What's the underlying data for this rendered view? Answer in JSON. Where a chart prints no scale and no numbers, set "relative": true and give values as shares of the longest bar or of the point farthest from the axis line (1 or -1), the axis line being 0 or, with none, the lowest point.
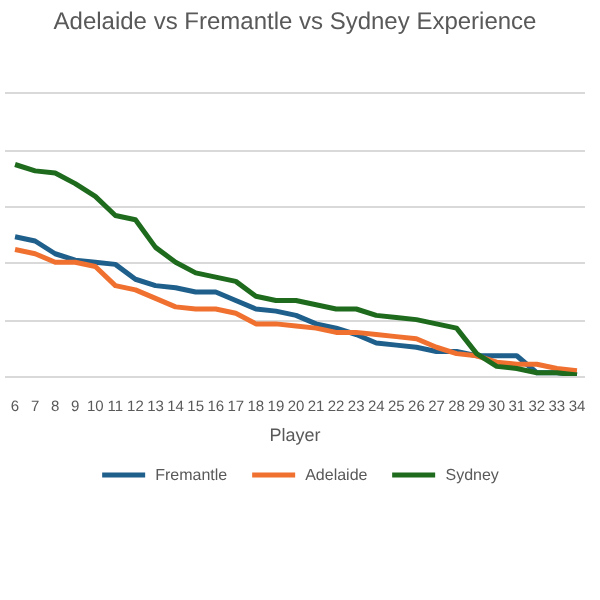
{
  "chart_data": {
    "type": "line",
    "title": "Adelaide vs Fremantle vs Sydney Experience",
    "xlabel": "Player",
    "relative": true,
    "grid": "y",
    "legend": "bottom",
    "categories": [
      "6",
      "7",
      "8",
      "9",
      "10",
      "11",
      "12",
      "13",
      "14",
      "15",
      "16",
      "17",
      "18",
      "19",
      "20",
      "21",
      "22",
      "23",
      "24",
      "25",
      "26",
      "27",
      "28",
      "29",
      "30",
      "31",
      "32",
      "33",
      "34"
    ],
    "series": [
      {
        "name": "Fremantle",
        "color": "#1f5f8b",
        "values": [
          0.66,
          0.64,
          0.58,
          0.55,
          0.54,
          0.53,
          0.46,
          0.43,
          0.42,
          0.4,
          0.4,
          0.36,
          0.32,
          0.31,
          0.29,
          0.25,
          0.23,
          0.2,
          0.16,
          0.15,
          0.14,
          0.12,
          0.12,
          0.1,
          0.1,
          0.1,
          0.02,
          0.02,
          0.01
        ]
      },
      {
        "name": "Adelaide",
        "color": "#f07030",
        "values": [
          0.6,
          0.58,
          0.54,
          0.54,
          0.52,
          0.43,
          0.41,
          0.37,
          0.33,
          0.32,
          0.32,
          0.3,
          0.25,
          0.25,
          0.24,
          0.23,
          0.21,
          0.21,
          0.2,
          0.19,
          0.18,
          0.14,
          0.11,
          0.1,
          0.07,
          0.06,
          0.06,
          0.04,
          0.03
        ]
      },
      {
        "name": "Sydney",
        "color": "#1e6b1e",
        "values": [
          1.0,
          0.97,
          0.96,
          0.91,
          0.85,
          0.76,
          0.74,
          0.61,
          0.54,
          0.49,
          0.47,
          0.45,
          0.38,
          0.36,
          0.36,
          0.34,
          0.32,
          0.32,
          0.29,
          0.28,
          0.27,
          0.25,
          0.23,
          0.11,
          0.05,
          0.04,
          0.02,
          0.02,
          0.01
        ]
      }
    ]
  }
}
